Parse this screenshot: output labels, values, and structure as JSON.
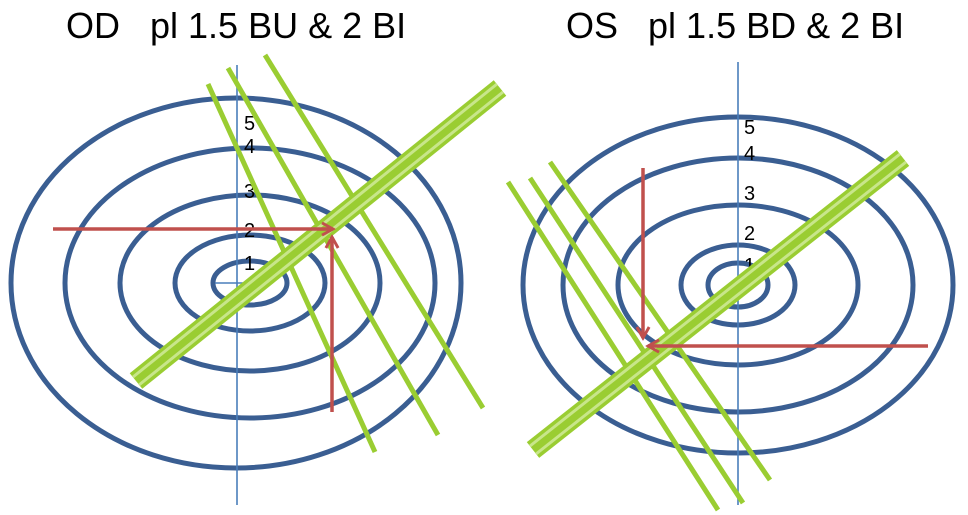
{
  "od": {
    "title": "OD   pl 1.5 BU & 2 BI",
    "ring_labels": [
      "1",
      "2",
      "3",
      "4",
      "5"
    ]
  },
  "os": {
    "title": "OS   pl 1.5 BD & 2 BI",
    "ring_labels": [
      "1",
      "2",
      "3",
      "4",
      "5"
    ]
  },
  "colors": {
    "rings": "#3a5e92",
    "axis": "#4a7ebb",
    "lens_lines": "#9acd32",
    "arrows": "#c0504d"
  }
}
